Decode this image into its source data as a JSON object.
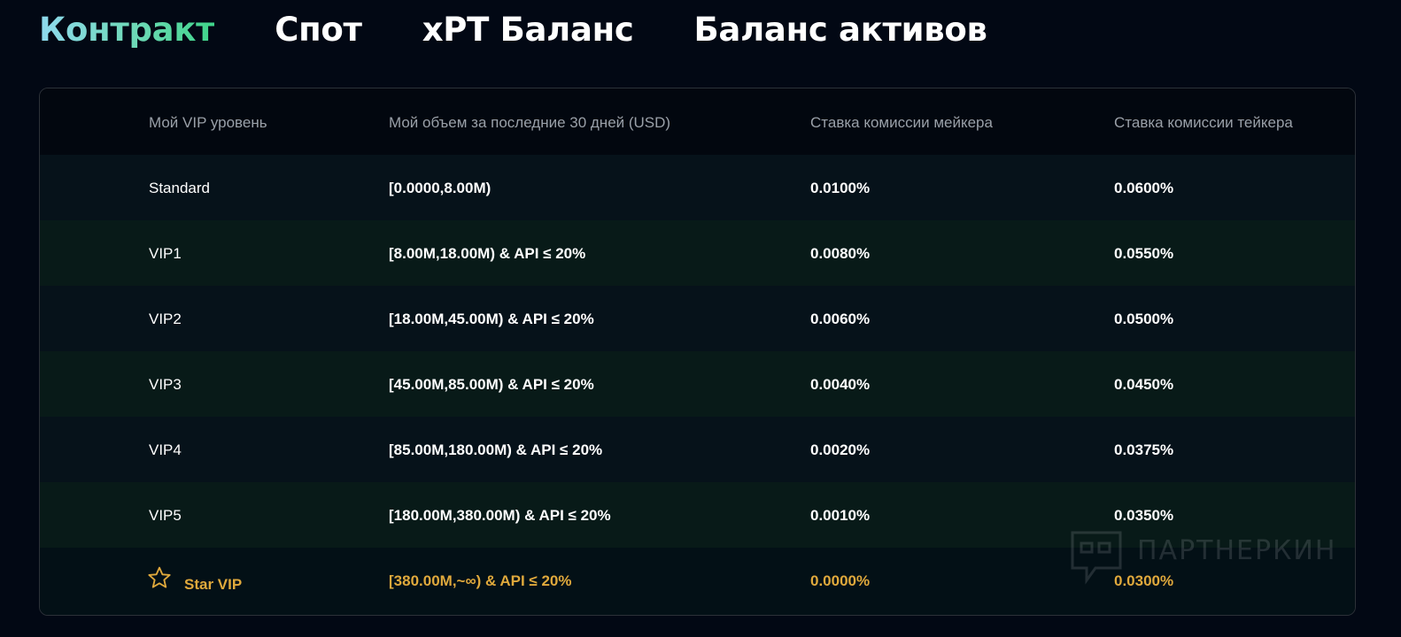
{
  "tabs": [
    {
      "label": "Контракт",
      "active": true
    },
    {
      "label": "Спот",
      "active": false
    },
    {
      "label": "xPT Баланс",
      "active": false
    },
    {
      "label": "Баланс активов",
      "active": false
    }
  ],
  "table": {
    "headers": {
      "level": "Мой VIP уровень",
      "volume": "Мой объем за последние 30 дней (USD)",
      "maker": "Ставка комиссии мейкера",
      "taker": "Ставка комиссии тейкера"
    },
    "rows": [
      {
        "level": "Standard",
        "volume": "[0.0000,8.00M)",
        "maker": "0.0100%",
        "taker": "0.0600%"
      },
      {
        "level": "VIP1",
        "volume": "[8.00M,18.00M) & API ≤ 20%",
        "maker": "0.0080%",
        "taker": "0.0550%"
      },
      {
        "level": "VIP2",
        "volume": "[18.00M,45.00M) & API ≤ 20%",
        "maker": "0.0060%",
        "taker": "0.0500%"
      },
      {
        "level": "VIP3",
        "volume": "[45.00M,85.00M) & API ≤ 20%",
        "maker": "0.0040%",
        "taker": "0.0450%"
      },
      {
        "level": "VIP4",
        "volume": "[85.00M,180.00M) & API ≤ 20%",
        "maker": "0.0020%",
        "taker": "0.0375%"
      },
      {
        "level": "VIP5",
        "volume": "[180.00M,380.00M) & API ≤ 20%",
        "maker": "0.0010%",
        "taker": "0.0350%"
      }
    ],
    "star_row": {
      "icon": "star-icon",
      "level": "Star VIP",
      "volume": "[380.00M,~∞) & API ≤ 20%",
      "maker": "0.0000%",
      "taker": "0.0300%"
    }
  },
  "watermark": {
    "icon": "chat-bubble-icon",
    "text": "ПАРТНЕРКИН"
  },
  "colors": {
    "background": "#020814",
    "accent_gold": "#e0a93c",
    "active_tab_gradient": [
      "#8fd9ee",
      "#3fd48a"
    ]
  }
}
